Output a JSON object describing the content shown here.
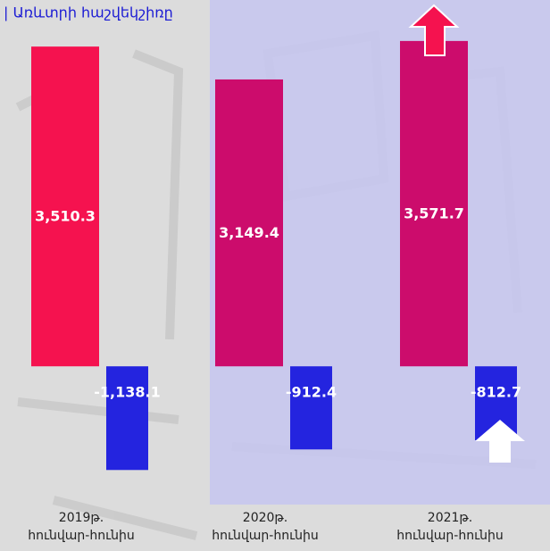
{
  "chart_data": {
    "type": "bar",
    "title": "| Առևտրի հաշվեկշիռը",
    "categories": [
      [
        "2019թ.",
        "հունվար-հունիս"
      ],
      [
        "2020թ.",
        "հունվար-հունիս"
      ],
      [
        "2021թ.",
        "հունվար-հունիս"
      ]
    ],
    "series": [
      {
        "colors": [
          "#f5124f",
          "#cc0c6c",
          "#cc0c6c"
        ],
        "values": [
          3510.3,
          3149.4,
          3571.7
        ],
        "value_labels": [
          "3,510.3",
          "3,149.4",
          "3,571.7"
        ]
      },
      {
        "color": "#2424df",
        "values": [
          -1138.1,
          -912.4,
          -812.7
        ],
        "value_labels": [
          "-1,138.1",
          "-912.4",
          "-812.7"
        ]
      }
    ],
    "ylim": [
      -1400,
      3600
    ]
  }
}
